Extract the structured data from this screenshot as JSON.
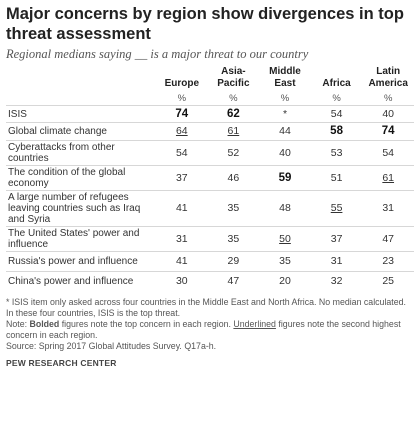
{
  "title": "Major concerns by region show divergences in top threat assessment",
  "subtitle": "Regional medians saying __ is a major threat to our country",
  "chart_data": {
    "type": "table",
    "columns": [
      "Europe",
      "Asia-Pacific",
      "Middle East",
      "Africa",
      "Latin America"
    ],
    "column_headers": [
      [
        "",
        "Europe"
      ],
      [
        "Asia-",
        "Pacific"
      ],
      [
        "Middle",
        "East"
      ],
      [
        "",
        "Africa"
      ],
      [
        "Latin",
        "America"
      ]
    ],
    "unit_row": [
      "%",
      "%",
      "%",
      "%",
      "%"
    ],
    "rows": [
      {
        "label": "ISIS",
        "values": [
          "74",
          "62",
          "*",
          "54",
          "40"
        ],
        "bold": [
          0,
          1
        ],
        "underline": []
      },
      {
        "label": "Global climate change",
        "values": [
          "64",
          "61",
          "44",
          "58",
          "74"
        ],
        "bold": [
          3,
          4
        ],
        "underline": [
          0,
          1
        ]
      },
      {
        "label": "Cyberattacks from other countries",
        "values": [
          "54",
          "52",
          "40",
          "53",
          "54"
        ],
        "bold": [],
        "underline": []
      },
      {
        "label": "The condition of the global economy",
        "values": [
          "37",
          "46",
          "59",
          "51",
          "61"
        ],
        "bold": [
          2
        ],
        "underline": [
          4
        ]
      },
      {
        "label": "A large number of refugees leaving countries such as Iraq and Syria",
        "values": [
          "41",
          "35",
          "48",
          "55",
          "31"
        ],
        "bold": [],
        "underline": [
          3
        ]
      },
      {
        "label": "The United States' power and influence",
        "values": [
          "31",
          "35",
          "50",
          "37",
          "47"
        ],
        "bold": [],
        "underline": [
          2
        ]
      },
      {
        "label": "Russia's power and influence",
        "values": [
          "41",
          "29",
          "35",
          "31",
          "23"
        ],
        "bold": [],
        "underline": []
      },
      {
        "label": "China's power and influence",
        "values": [
          "30",
          "47",
          "20",
          "32",
          "25"
        ],
        "bold": [],
        "underline": []
      }
    ]
  },
  "notes": {
    "asterisk": "* ISIS item only asked across four countries in the Middle East and North Africa. No median calculated. In these four countries, ISIS is the top threat.",
    "note_prefix": "Note: ",
    "note_bold": "Bolded",
    "note_mid": " figures note the top concern in each region. ",
    "note_under": "Underlined",
    "note_end": " figures note the second highest concern in each region.",
    "source": "Source: Spring 2017 Global Attitudes Survey. Q17a-h.",
    "org": "PEW RESEARCH CENTER"
  }
}
